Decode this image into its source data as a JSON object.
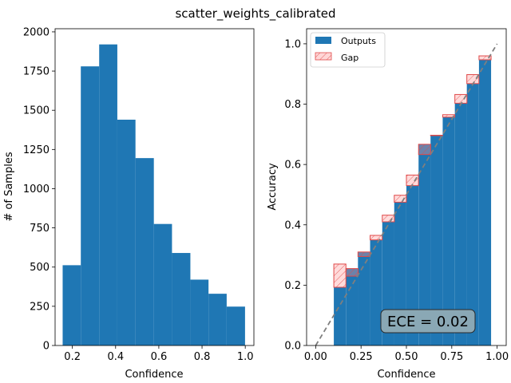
{
  "title": "scatter_weights_calibrated",
  "chart_data": [
    {
      "type": "bar",
      "xlabel": "Confidence",
      "ylabel": "# of Samples",
      "xlim": [
        0.12,
        1.04
      ],
      "ylim": [
        0,
        2020
      ],
      "xticks": [
        0.2,
        0.4,
        0.6,
        0.8,
        1.0
      ],
      "xtick_labels": [
        "0.2",
        "0.4",
        "0.6",
        "0.8",
        "1.0"
      ],
      "yticks": [
        0,
        250,
        500,
        750,
        1000,
        1250,
        1500,
        1750,
        2000
      ],
      "ytick_labels": [
        "0",
        "250",
        "500",
        "750",
        "1000",
        "1250",
        "1500",
        "1750",
        "2000"
      ],
      "bar_color": "#1f77b4",
      "bins": [
        {
          "x0": 0.155,
          "x1": 0.239,
          "count": 512
        },
        {
          "x0": 0.239,
          "x1": 0.324,
          "count": 1780
        },
        {
          "x0": 0.324,
          "x1": 0.408,
          "count": 1920
        },
        {
          "x0": 0.408,
          "x1": 0.492,
          "count": 1440
        },
        {
          "x0": 0.492,
          "x1": 0.577,
          "count": 1195
        },
        {
          "x0": 0.577,
          "x1": 0.661,
          "count": 775
        },
        {
          "x0": 0.661,
          "x1": 0.746,
          "count": 590
        },
        {
          "x0": 0.746,
          "x1": 0.83,
          "count": 420
        },
        {
          "x0": 0.83,
          "x1": 0.914,
          "count": 330
        },
        {
          "x0": 0.914,
          "x1": 0.999,
          "count": 248
        }
      ]
    },
    {
      "type": "bar",
      "xlabel": "Confidence",
      "ylabel": "Accuracy",
      "xlim": [
        -0.05,
        1.05
      ],
      "ylim": [
        0,
        1.05
      ],
      "xticks": [
        0.0,
        0.25,
        0.5,
        0.75,
        1.0
      ],
      "xtick_labels": [
        "0.00",
        "0.25",
        "0.50",
        "0.75",
        "1.00"
      ],
      "yticks": [
        0.0,
        0.2,
        0.4,
        0.6,
        0.8,
        1.0
      ],
      "ytick_labels": [
        "0.0",
        "0.2",
        "0.4",
        "0.6",
        "0.8",
        "1.0"
      ],
      "bin_width": 0.0667,
      "outputs_color": "#1f77b4",
      "gap_color": "#ff9999",
      "gap_edge": "#e04a4a",
      "legend": {
        "placement": "top-left",
        "entries": [
          "Outputs",
          "Gap"
        ]
      },
      "ece_label": "ECE = 0.02",
      "bins": [
        {
          "x0": 0.1,
          "acc": 0.193,
          "conf": 0.27
        },
        {
          "x0": 0.167,
          "acc": 0.255,
          "conf": 0.23
        },
        {
          "x0": 0.233,
          "acc": 0.31,
          "conf": 0.295
        },
        {
          "x0": 0.3,
          "acc": 0.35,
          "conf": 0.365
        },
        {
          "x0": 0.367,
          "acc": 0.41,
          "conf": 0.432
        },
        {
          "x0": 0.433,
          "acc": 0.475,
          "conf": 0.498
        },
        {
          "x0": 0.5,
          "acc": 0.53,
          "conf": 0.565
        },
        {
          "x0": 0.567,
          "acc": 0.667,
          "conf": 0.633
        },
        {
          "x0": 0.633,
          "acc": 0.697,
          "conf": 0.697
        },
        {
          "x0": 0.7,
          "acc": 0.757,
          "conf": 0.765
        },
        {
          "x0": 0.767,
          "acc": 0.803,
          "conf": 0.832
        },
        {
          "x0": 0.833,
          "acc": 0.868,
          "conf": 0.898
        },
        {
          "x0": 0.9,
          "acc": 0.947,
          "conf": 0.96
        }
      ]
    }
  ]
}
